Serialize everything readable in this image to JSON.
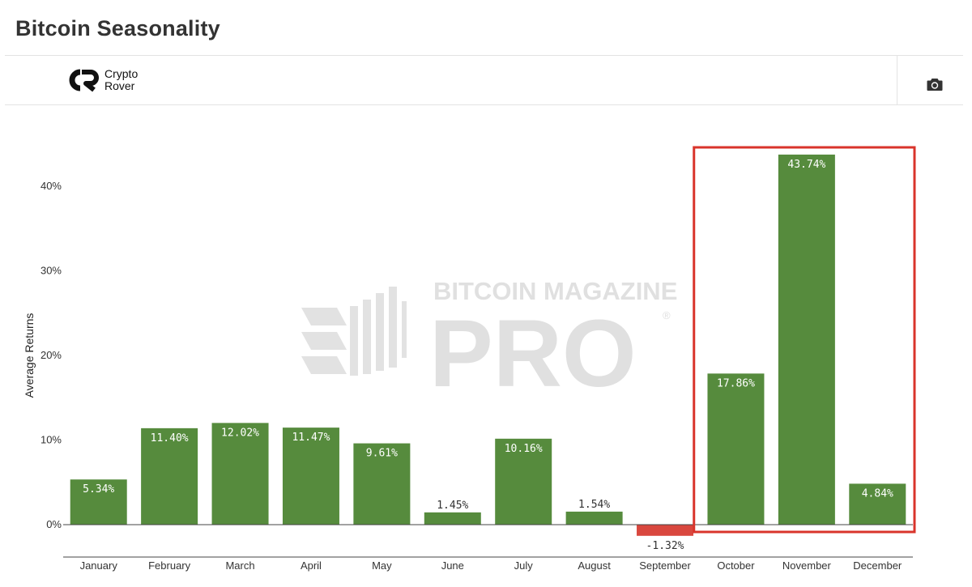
{
  "page": {
    "title": "Bitcoin Seasonality"
  },
  "logo": {
    "line1": "Crypto",
    "line2": "Rover"
  },
  "toolbar": {
    "camera_icon": "camera-icon"
  },
  "watermark": {
    "line1": "BITCOIN MAGAZINE",
    "line2": "PRO",
    "mark": "®"
  },
  "colors": {
    "positive": "#568b3d",
    "negative": "#d9473e",
    "highlight_box": "#d9342b",
    "axis": "#444444",
    "text": "#333333",
    "watermark": "#dedede"
  },
  "chart_data": {
    "type": "bar",
    "title": "",
    "xlabel": "",
    "ylabel": "Average Returns",
    "categories": [
      "January",
      "February",
      "March",
      "April",
      "May",
      "June",
      "July",
      "August",
      "September",
      "October",
      "November",
      "December"
    ],
    "values": [
      5.34,
      11.4,
      12.02,
      11.47,
      9.61,
      1.45,
      10.16,
      1.54,
      -1.32,
      17.86,
      43.74,
      4.84
    ],
    "value_labels": [
      "5.34%",
      "11.40%",
      "12.02%",
      "11.47%",
      "9.61%",
      "1.45%",
      "10.16%",
      "1.54%",
      "-1.32%",
      "17.86%",
      "43.74%",
      "4.84%"
    ],
    "y_ticks": [
      0,
      10,
      20,
      30,
      40
    ],
    "y_tick_labels": [
      "0%",
      "10%",
      "20%",
      "30%",
      "40%"
    ],
    "ylim": [
      -3.8,
      46.5
    ],
    "grid": false,
    "legend": "none",
    "highlight": {
      "categories": [
        "October",
        "November",
        "December"
      ],
      "style": "red outline box"
    }
  }
}
